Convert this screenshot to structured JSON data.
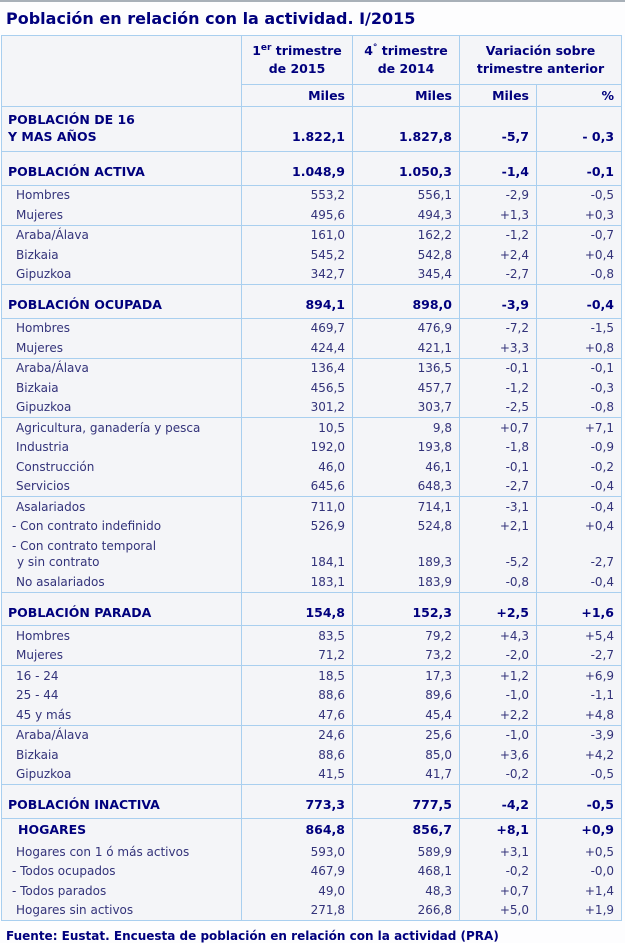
{
  "title": "Población en relación con la actividad. I/2015",
  "footer": "Fuente: Eustat. Encuesta de población en relación con la actividad (PRA)",
  "colors": {
    "heading_text": "#00007d",
    "body_text": "#33337a",
    "table_border": "#a9cfef",
    "cell_background": "#f4f5f8"
  },
  "table": {
    "header": {
      "col1": {
        "num": "1",
        "sup": "er",
        "rest": " trimestre",
        "line2": "de 2015"
      },
      "col2": {
        "num": "4",
        "sup": "°",
        "rest": " trimestre",
        "line2": "de 2014"
      },
      "variacion": {
        "line1": "Variación sobre",
        "line2": "trimestre anterior"
      }
    },
    "subheaders": {
      "miles1": "Miles",
      "miles2": "Miles",
      "miles3": "Miles",
      "pct": "%"
    },
    "rows": [
      {
        "style": "p16",
        "label": "POBLACIÓN DE 16",
        "label2": "Y MAS AÑOS",
        "values": [
          "1.822,1",
          "1.827,8",
          "-5,7",
          "- 0,3"
        ]
      },
      {
        "style": "section",
        "sep": true,
        "label": "POBLACIÓN ACTIVA",
        "values": [
          "1.048,9",
          "1.050,3",
          "-1,4",
          "-0,1"
        ]
      },
      {
        "style": "normal",
        "sep": true,
        "label": "Hombres",
        "values": [
          "553,2",
          "556,1",
          "-2,9",
          "-0,5"
        ]
      },
      {
        "style": "normal",
        "label": "Mujeres",
        "values": [
          "495,6",
          "494,3",
          "+1,3",
          "+0,3"
        ]
      },
      {
        "style": "normal",
        "sep": true,
        "label": "Araba/Álava",
        "values": [
          "161,0",
          "162,2",
          "-1,2",
          "-0,7"
        ]
      },
      {
        "style": "normal",
        "label": "Bizkaia",
        "values": [
          "545,2",
          "542,8",
          "+2,4",
          "+0,4"
        ]
      },
      {
        "style": "normal",
        "label": "Gipuzkoa",
        "values": [
          "342,7",
          "345,4",
          "-2,7",
          "-0,8"
        ]
      },
      {
        "style": "section",
        "sep": true,
        "label": "POBLACIÓN OCUPADA",
        "values": [
          "894,1",
          "898,0",
          "-3,9",
          "-0,4"
        ]
      },
      {
        "style": "normal",
        "sep": true,
        "label": "Hombres",
        "values": [
          "469,7",
          "476,9",
          "-7,2",
          "-1,5"
        ]
      },
      {
        "style": "normal",
        "label": "Mujeres",
        "values": [
          "424,4",
          "421,1",
          "+3,3",
          "+0,8"
        ]
      },
      {
        "style": "normal",
        "sep": true,
        "label": "Araba/Álava",
        "values": [
          "136,4",
          "136,5",
          "-0,1",
          "-0,1"
        ]
      },
      {
        "style": "normal",
        "label": "Bizkaia",
        "values": [
          "456,5",
          "457,7",
          "-1,2",
          "-0,3"
        ]
      },
      {
        "style": "normal",
        "label": "Gipuzkoa",
        "values": [
          "301,2",
          "303,7",
          "-2,5",
          "-0,8"
        ]
      },
      {
        "style": "normal",
        "sep": true,
        "label": "Agricultura, ganadería y pesca",
        "values": [
          "10,5",
          "9,8",
          "+0,7",
          "+7,1"
        ]
      },
      {
        "style": "normal",
        "label": "Industria",
        "values": [
          "192,0",
          "193,8",
          "-1,8",
          "-0,9"
        ]
      },
      {
        "style": "normal",
        "label": "Construcción",
        "values": [
          "46,0",
          "46,1",
          "-0,1",
          "-0,2"
        ]
      },
      {
        "style": "normal",
        "label": "Servicios",
        "values": [
          "645,6",
          "648,3",
          "-2,7",
          "-0,4"
        ]
      },
      {
        "style": "normal",
        "sep": true,
        "label": "Asalariados",
        "values": [
          "711,0",
          "714,1",
          "-3,1",
          "-0,4"
        ]
      },
      {
        "style": "dash",
        "label": "- Con contrato indefinido",
        "values": [
          "526,9",
          "524,8",
          "+2,1",
          "+0,4"
        ]
      },
      {
        "style": "dash",
        "label": "- Con contrato temporal",
        "label2": "y sin contrato",
        "values": [
          "184,1",
          "189,3",
          "-5,2",
          "-2,7"
        ]
      },
      {
        "style": "normal",
        "label": "No asalariados",
        "values": [
          "183,1",
          "183,9",
          "-0,8",
          "-0,4"
        ]
      },
      {
        "style": "section",
        "sep": true,
        "label": "POBLACIÓN PARADA",
        "values": [
          "154,8",
          "152,3",
          "+2,5",
          "+1,6"
        ]
      },
      {
        "style": "normal",
        "sep": true,
        "label": "Hombres",
        "values": [
          "83,5",
          "79,2",
          "+4,3",
          "+5,4"
        ]
      },
      {
        "style": "normal",
        "label": "Mujeres",
        "values": [
          "71,2",
          "73,2",
          "-2,0",
          "-2,7"
        ]
      },
      {
        "style": "normal",
        "sep": true,
        "label": "16 - 24",
        "values": [
          "18,5",
          "17,3",
          "+1,2",
          "+6,9"
        ]
      },
      {
        "style": "normal",
        "label": "25 - 44",
        "values": [
          "88,6",
          "89,6",
          "-1,0",
          "-1,1"
        ]
      },
      {
        "style": "normal",
        "label": "45  y más",
        "values": [
          "47,6",
          "45,4",
          "+2,2",
          "+4,8"
        ]
      },
      {
        "style": "normal",
        "sep": true,
        "label": "Araba/Álava",
        "values": [
          "24,6",
          "25,6",
          "-1,0",
          "-3,9"
        ]
      },
      {
        "style": "normal",
        "label": "Bizkaia",
        "values": [
          "88,6",
          "85,0",
          "+3,6",
          "+4,2"
        ]
      },
      {
        "style": "normal",
        "label": "Gipuzkoa",
        "values": [
          "41,5",
          "41,7",
          "-0,2",
          "-0,5"
        ]
      },
      {
        "style": "section",
        "sep": true,
        "label": "POBLACIÓN INACTIVA",
        "values": [
          "773,3",
          "777,5",
          "-4,2",
          "-0,5"
        ]
      },
      {
        "style": "hogares",
        "sep": true,
        "label": "HOGARES",
        "values": [
          "864,8",
          "856,7",
          "+8,1",
          "+0,9"
        ]
      },
      {
        "style": "normal",
        "label": "Hogares con 1 ó más activos",
        "values": [
          "593,0",
          "589,9",
          "+3,1",
          "+0,5"
        ]
      },
      {
        "style": "dash",
        "label": "- Todos ocupados",
        "values": [
          "467,9",
          "468,1",
          "-0,2",
          "-0,0"
        ]
      },
      {
        "style": "dash",
        "label": "- Todos parados",
        "values": [
          "49,0",
          "48,3",
          "+0,7",
          "+1,4"
        ]
      },
      {
        "style": "normal",
        "label": "Hogares sin activos",
        "values": [
          "271,8",
          "266,8",
          "+5,0",
          "+1,9"
        ]
      }
    ]
  }
}
